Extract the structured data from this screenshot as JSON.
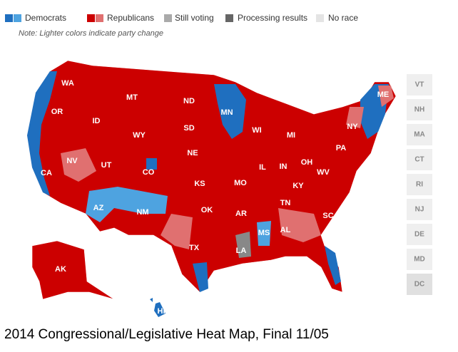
{
  "legend": {
    "items": [
      "Democrats",
      "Republicans",
      "Still voting",
      "Processing results",
      "No race"
    ],
    "note": "Note: Lighter colors indicate party change"
  },
  "map": {
    "state_labels": [
      "WA",
      "OR",
      "CA",
      "NV",
      "ID",
      "MT",
      "WY",
      "UT",
      "AZ",
      "CO",
      "NM",
      "ND",
      "SD",
      "NE",
      "KS",
      "OK",
      "TX",
      "MN",
      "WI",
      "MI",
      "IL",
      "IN",
      "OH",
      "MO",
      "AR",
      "LA",
      "MS",
      "AL",
      "TN",
      "KY",
      "WV",
      "SC",
      "PA",
      "NY",
      "ME",
      "AK",
      "HI"
    ],
    "small_states": [
      "VT",
      "NH",
      "MA",
      "CT",
      "RI",
      "NJ",
      "DE",
      "MD",
      "DC"
    ]
  },
  "caption": "2014 Congressional/Legislative Heat Map, Final 11/05"
}
